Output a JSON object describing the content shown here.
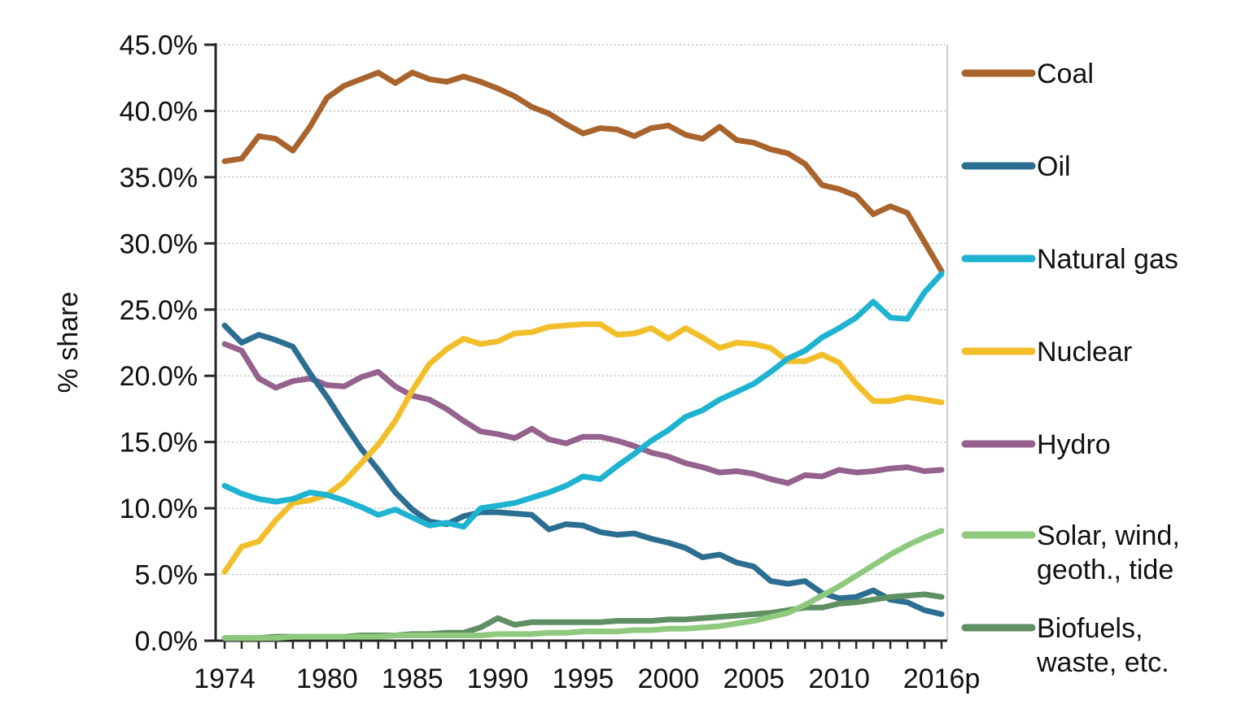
{
  "page": {
    "background": "#ffffff"
  },
  "chart_data": {
    "type": "line",
    "title": "",
    "xlabel": "",
    "ylabel": "% share",
    "ylim": [
      0,
      45
    ],
    "y_tick_step": 5,
    "y_tick_suffix": "%",
    "grid": "horizontal-dashed",
    "legend_position": "right",
    "x": [
      1974,
      1975,
      1976,
      1977,
      1978,
      1979,
      1980,
      1981,
      1982,
      1983,
      1984,
      1985,
      1986,
      1987,
      1988,
      1989,
      1990,
      1991,
      1992,
      1993,
      1994,
      1995,
      1996,
      1997,
      1998,
      1999,
      2000,
      2001,
      2002,
      2003,
      2004,
      2005,
      2006,
      2007,
      2008,
      2009,
      2010,
      2011,
      2012,
      2013,
      2014,
      2015,
      2016
    ],
    "x_tick_labels": [
      {
        "x": 1974,
        "label": "1974"
      },
      {
        "x": 1980,
        "label": "1980"
      },
      {
        "x": 1985,
        "label": "1985"
      },
      {
        "x": 1990,
        "label": "1990"
      },
      {
        "x": 1995,
        "label": "1995"
      },
      {
        "x": 2000,
        "label": "2000"
      },
      {
        "x": 2005,
        "label": "2005"
      },
      {
        "x": 2010,
        "label": "2010"
      },
      {
        "x": 2016,
        "label": "2016p"
      }
    ],
    "series": [
      {
        "name": "Coal",
        "legend_lines": [
          "Coal"
        ],
        "color": "#A9642D",
        "values": [
          36.2,
          36.4,
          38.1,
          37.9,
          37.0,
          38.8,
          41.0,
          41.9,
          42.4,
          42.9,
          42.1,
          42.9,
          42.4,
          42.2,
          42.6,
          42.2,
          41.7,
          41.1,
          40.3,
          39.8,
          39.0,
          38.3,
          38.7,
          38.6,
          38.1,
          38.7,
          38.9,
          38.2,
          37.9,
          38.8,
          37.8,
          37.6,
          37.1,
          36.8,
          36.0,
          34.4,
          34.1,
          33.6,
          32.2,
          32.8,
          32.3,
          30.1,
          27.9
        ]
      },
      {
        "name": "Oil",
        "legend_lines": [
          "Oil"
        ],
        "color": "#2C6E91",
        "values": [
          23.8,
          22.5,
          23.1,
          22.7,
          22.2,
          20.2,
          18.4,
          16.4,
          14.5,
          12.9,
          11.2,
          9.9,
          9.0,
          8.8,
          9.4,
          9.7,
          9.7,
          9.6,
          9.5,
          8.4,
          8.8,
          8.7,
          8.2,
          8.0,
          8.1,
          7.7,
          7.4,
          7.0,
          6.3,
          6.5,
          5.9,
          5.6,
          4.5,
          4.3,
          4.5,
          3.6,
          3.2,
          3.3,
          3.8,
          3.1,
          2.9,
          2.3,
          2.0
        ]
      },
      {
        "name": "Natural gas",
        "legend_lines": [
          "Natural gas"
        ],
        "color": "#1DB3D1",
        "values": [
          11.7,
          11.1,
          10.7,
          10.5,
          10.7,
          11.2,
          11.0,
          10.6,
          10.1,
          9.5,
          9.9,
          9.3,
          8.7,
          8.9,
          8.6,
          10.0,
          10.2,
          10.4,
          10.8,
          11.2,
          11.7,
          12.4,
          12.2,
          13.2,
          14.1,
          15.1,
          15.9,
          16.9,
          17.4,
          18.2,
          18.8,
          19.4,
          20.3,
          21.3,
          21.9,
          22.9,
          23.6,
          24.4,
          25.6,
          24.4,
          24.3,
          26.3,
          27.7
        ]
      },
      {
        "name": "Nuclear",
        "legend_lines": [
          "Nuclear"
        ],
        "color": "#F2BF2B",
        "values": [
          5.2,
          7.1,
          7.5,
          9.1,
          10.4,
          10.6,
          11.0,
          12.0,
          13.4,
          14.8,
          16.6,
          18.9,
          20.9,
          22.0,
          22.8,
          22.4,
          22.6,
          23.2,
          23.3,
          23.7,
          23.8,
          23.9,
          23.9,
          23.1,
          23.2,
          23.6,
          22.8,
          23.6,
          22.9,
          22.1,
          22.5,
          22.4,
          22.1,
          21.1,
          21.1,
          21.6,
          21.0,
          19.4,
          18.1,
          18.1,
          18.4,
          18.2,
          18.0
        ]
      },
      {
        "name": "Hydro",
        "legend_lines": [
          "Hydro"
        ],
        "color": "#95618D",
        "values": [
          22.4,
          21.9,
          19.8,
          19.1,
          19.6,
          19.8,
          19.3,
          19.2,
          19.9,
          20.3,
          19.2,
          18.5,
          18.2,
          17.5,
          16.6,
          15.8,
          15.6,
          15.3,
          16.0,
          15.2,
          14.9,
          15.4,
          15.4,
          15.1,
          14.7,
          14.2,
          13.9,
          13.4,
          13.1,
          12.7,
          12.8,
          12.6,
          12.2,
          11.9,
          12.5,
          12.4,
          12.9,
          12.7,
          12.8,
          13.0,
          13.1,
          12.8,
          12.9
        ]
      },
      {
        "name": "Solar, wind, geoth., tide",
        "legend_lines": [
          "Solar, wind,",
          "geoth., tide"
        ],
        "color": "#8FC97D",
        "values": [
          0.2,
          0.2,
          0.2,
          0.2,
          0.3,
          0.3,
          0.3,
          0.3,
          0.3,
          0.3,
          0.4,
          0.4,
          0.4,
          0.4,
          0.4,
          0.4,
          0.5,
          0.5,
          0.5,
          0.6,
          0.6,
          0.7,
          0.7,
          0.7,
          0.8,
          0.8,
          0.9,
          0.9,
          1.0,
          1.1,
          1.3,
          1.5,
          1.8,
          2.1,
          2.7,
          3.4,
          4.1,
          4.9,
          5.7,
          6.5,
          7.2,
          7.8,
          8.3
        ]
      },
      {
        "name": "Biofuels, waste, etc.",
        "legend_lines": [
          "Biofuels,",
          "waste, etc."
        ],
        "color": "#5F8F62",
        "values": [
          0.2,
          0.2,
          0.2,
          0.3,
          0.3,
          0.3,
          0.3,
          0.3,
          0.4,
          0.4,
          0.4,
          0.5,
          0.5,
          0.6,
          0.6,
          1.0,
          1.7,
          1.2,
          1.4,
          1.4,
          1.4,
          1.4,
          1.4,
          1.5,
          1.5,
          1.5,
          1.6,
          1.6,
          1.7,
          1.8,
          1.9,
          2.0,
          2.1,
          2.3,
          2.5,
          2.5,
          2.8,
          2.9,
          3.1,
          3.3,
          3.4,
          3.5,
          3.3
        ]
      }
    ],
    "draw_order": [
      4,
      1,
      3,
      6,
      5,
      0,
      2
    ]
  },
  "style_colors": {
    "axis": "#262626",
    "gridline": "#A6A6A6",
    "plot_right_border": "#BFBFBF",
    "text": "#111111"
  }
}
